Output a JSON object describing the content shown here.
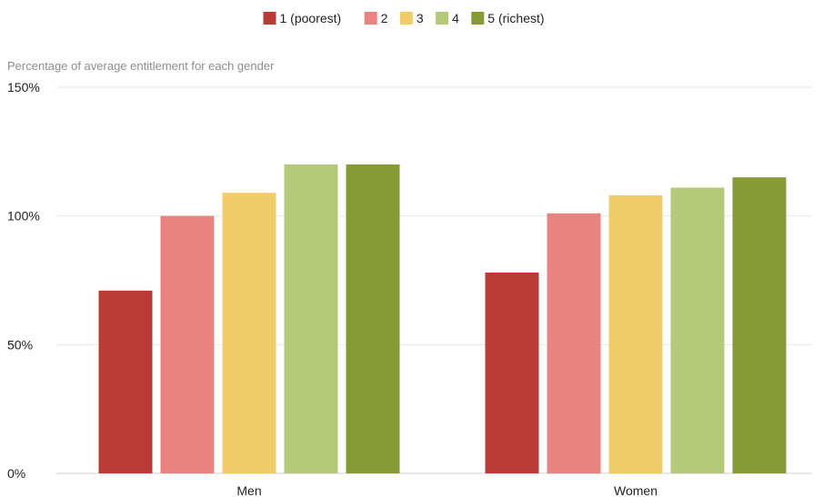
{
  "chart_data": {
    "type": "bar",
    "ylabel": "Percentage of average entitlement for each gender",
    "categories": [
      "Men",
      "Women"
    ],
    "series": [
      {
        "name": "1 (poorest)",
        "color": "#b83b36",
        "values": [
          71,
          78
        ]
      },
      {
        "name": "2",
        "color": "#e88380",
        "values": [
          100,
          101
        ]
      },
      {
        "name": "3",
        "color": "#f1cd6a",
        "values": [
          109,
          108
        ]
      },
      {
        "name": "4",
        "color": "#b5c978",
        "values": [
          120,
          111
        ]
      },
      {
        "name": "5 (richest)",
        "color": "#869b38",
        "values": [
          120,
          115
        ]
      }
    ],
    "ylim": [
      0,
      150
    ],
    "yticks": [
      {
        "value": 0,
        "label": "0%"
      },
      {
        "value": 50,
        "label": "50%"
      },
      {
        "value": 100,
        "label": "100%"
      },
      {
        "value": 150,
        "label": "150%"
      }
    ],
    "grid": true,
    "legend": "top-center"
  }
}
